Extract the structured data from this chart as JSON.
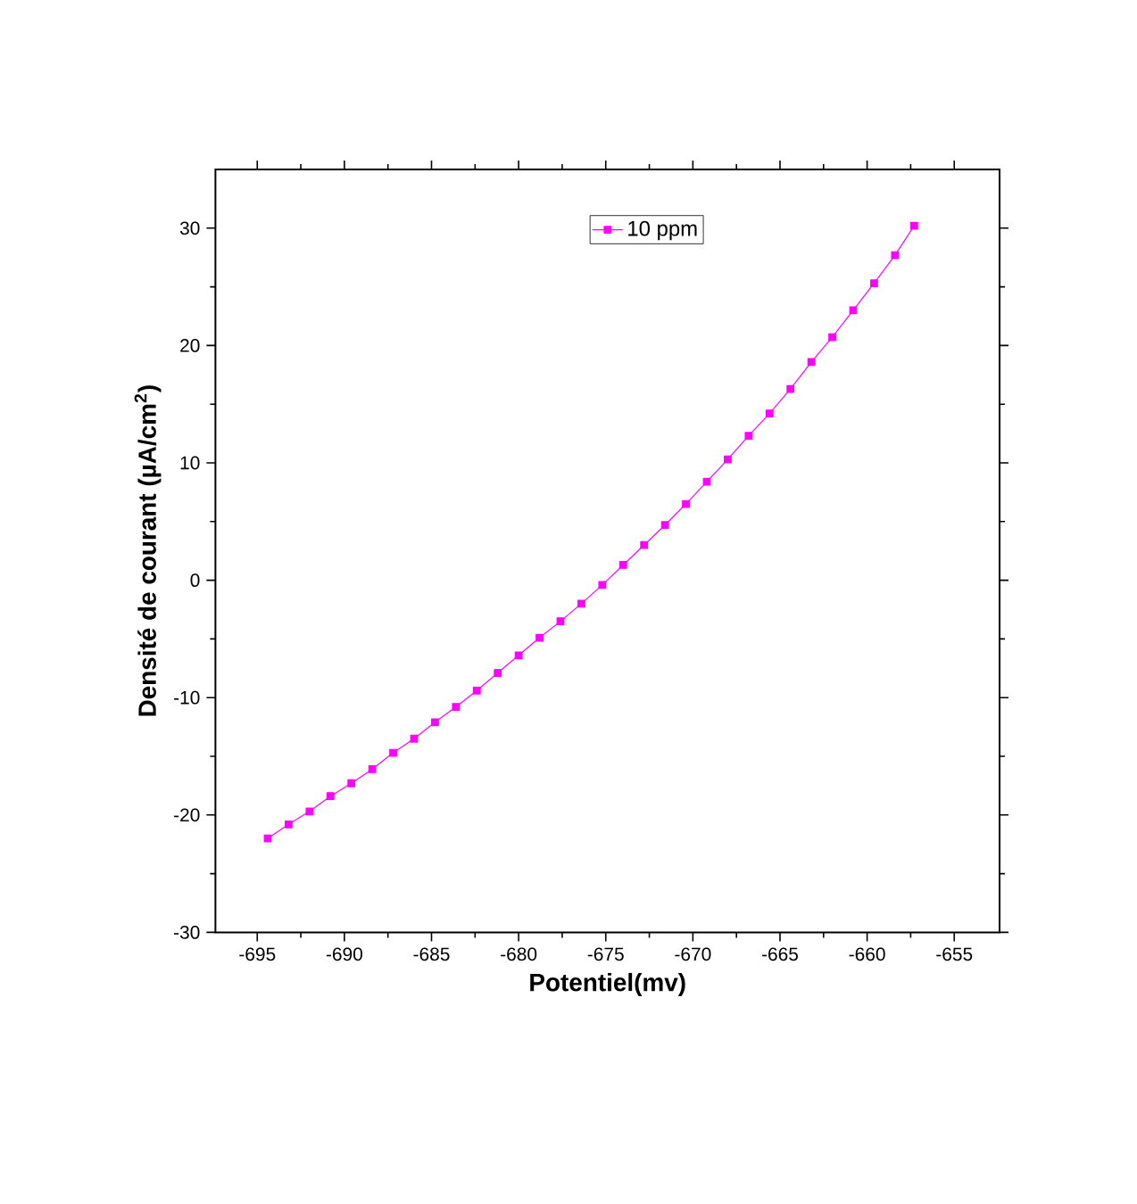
{
  "chart_data": {
    "type": "line",
    "xlabel": "Potentiel(mv)",
    "ylabel": "Densité de courant (µA/cm$^{2}$)",
    "xlim": [
      -697.4,
      -652.4
    ],
    "ylim": [
      -30,
      35
    ],
    "xticks": [
      -695,
      -690,
      -685,
      -680,
      -675,
      -670,
      -665,
      -660,
      -655
    ],
    "yticks": [
      -30,
      -20,
      -10,
      0,
      10,
      20,
      30
    ],
    "marker": "square",
    "line_style": "solid",
    "legend": "top",
    "x": [
      -694.4,
      -693.2,
      -692.0,
      -690.8,
      -689.6,
      -688.4,
      -687.2,
      -686.0,
      -684.8,
      -683.6,
      -682.4,
      -681.2,
      -680.0,
      -678.8,
      -677.6,
      -676.4,
      -675.2,
      -674.0,
      -672.8,
      -671.6,
      -670.4,
      -669.2,
      -668.0,
      -666.8,
      -665.6,
      -664.4,
      -663.2,
      -662.0,
      -660.8,
      -659.6,
      -658.4,
      -657.3
    ],
    "series": [
      {
        "name": "10 ppm",
        "color": "#ff00ff",
        "values": [
          -22.0,
          -20.8,
          -19.7,
          -18.4,
          -17.3,
          -16.1,
          -14.7,
          -13.5,
          -12.1,
          -10.8,
          -9.4,
          -7.9,
          -6.4,
          -4.9,
          -3.5,
          -2.0,
          -0.4,
          1.3,
          3.0,
          4.7,
          6.5,
          8.4,
          10.3,
          12.3,
          14.2,
          16.3,
          18.6,
          20.7,
          23.0,
          25.3,
          27.7,
          30.2
        ]
      }
    ]
  }
}
